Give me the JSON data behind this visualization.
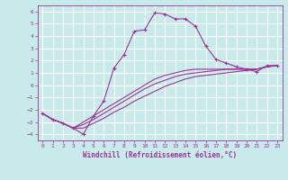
{
  "xlabel": "Windchill (Refroidissement éolien,°C)",
  "background_color": "#c8eaea",
  "grid_color": "#ffffff",
  "line_color": "#993399",
  "x_ticks": [
    0,
    1,
    2,
    3,
    4,
    5,
    6,
    7,
    8,
    9,
    10,
    11,
    12,
    13,
    14,
    15,
    16,
    17,
    18,
    19,
    20,
    21,
    22,
    23
  ],
  "y_ticks": [
    -4,
    -3,
    -2,
    -1,
    0,
    1,
    2,
    3,
    4,
    5,
    6
  ],
  "ylim": [
    -4.5,
    6.5
  ],
  "xlim": [
    -0.5,
    23.5
  ],
  "series1_x": [
    0,
    1,
    2,
    3,
    4,
    5,
    6,
    7,
    8,
    9,
    10,
    11,
    12,
    13,
    14,
    15,
    16,
    17,
    18,
    19,
    20,
    21,
    22,
    23
  ],
  "series1_y": [
    -2.3,
    -2.8,
    -3.1,
    -3.5,
    -4.0,
    -2.5,
    -1.3,
    1.4,
    2.5,
    4.4,
    4.5,
    5.9,
    5.8,
    5.4,
    5.4,
    4.8,
    3.2,
    2.1,
    1.8,
    1.5,
    1.3,
    1.1,
    1.6,
    1.6
  ],
  "series2_x": [
    0,
    1,
    2,
    3,
    4,
    5,
    6,
    7,
    8,
    9,
    10,
    11,
    12,
    13,
    14,
    15,
    16,
    17,
    18,
    19,
    20,
    21,
    22,
    23
  ],
  "series2_y": [
    -2.3,
    -2.8,
    -3.1,
    -3.5,
    -3.0,
    -2.5,
    -2.0,
    -1.5,
    -1.0,
    -0.5,
    0.0,
    0.5,
    0.8,
    1.0,
    1.2,
    1.3,
    1.3,
    1.3,
    1.3,
    1.3,
    1.3,
    1.3,
    1.5,
    1.6
  ],
  "series3_x": [
    0,
    1,
    2,
    3,
    4,
    5,
    6,
    7,
    8,
    9,
    10,
    11,
    12,
    13,
    14,
    15,
    16,
    17,
    18,
    19,
    20,
    21,
    22,
    23
  ],
  "series3_y": [
    -2.3,
    -2.8,
    -3.1,
    -3.5,
    -3.2,
    -2.8,
    -2.3,
    -1.8,
    -1.3,
    -0.8,
    -0.3,
    0.1,
    0.4,
    0.7,
    0.9,
    1.0,
    1.1,
    1.2,
    1.3,
    1.3,
    1.3,
    1.3,
    1.5,
    1.6
  ],
  "series4_x": [
    0,
    1,
    2,
    3,
    4,
    5,
    6,
    7,
    8,
    9,
    10,
    11,
    12,
    13,
    14,
    15,
    16,
    17,
    18,
    19,
    20,
    21,
    22,
    23
  ],
  "series4_y": [
    -2.3,
    -2.8,
    -3.1,
    -3.5,
    -3.5,
    -3.1,
    -2.7,
    -2.2,
    -1.8,
    -1.3,
    -0.9,
    -0.5,
    -0.1,
    0.2,
    0.5,
    0.7,
    0.8,
    0.9,
    1.0,
    1.1,
    1.2,
    1.3,
    1.5,
    1.6
  ]
}
